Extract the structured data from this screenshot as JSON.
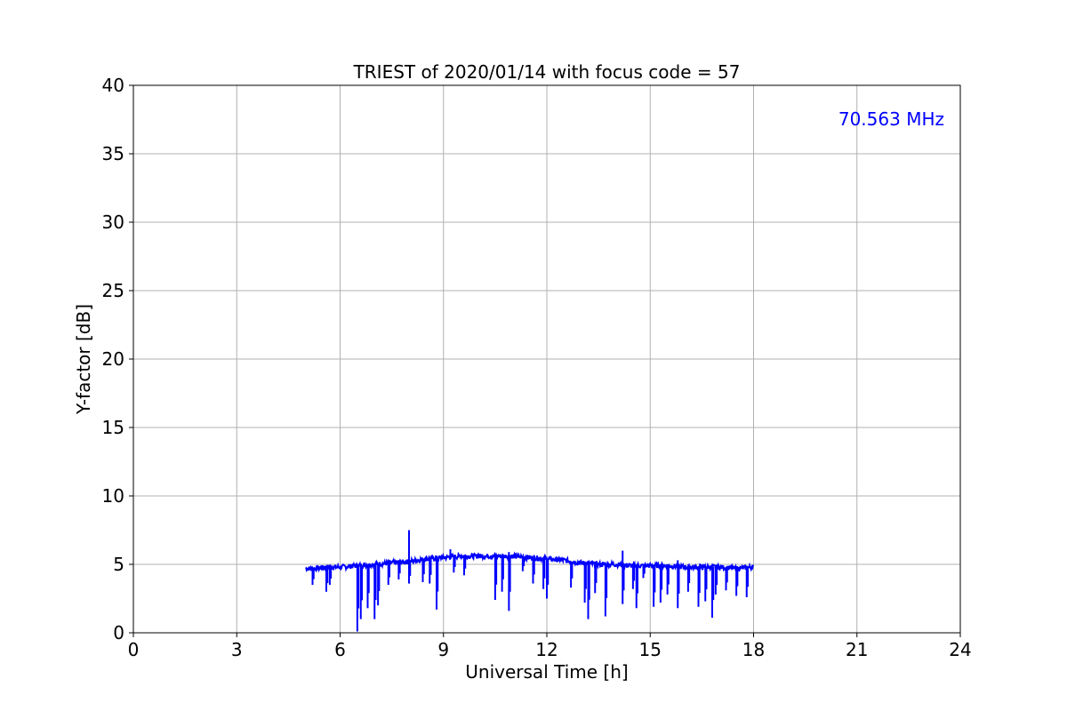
{
  "chart_data": {
    "type": "line",
    "title": "TRIEST of 2020/01/14 with focus code = 57",
    "xlabel": "Universal Time [h]",
    "ylabel": "Y-factor [dB]",
    "xlim": [
      0,
      24
    ],
    "ylim": [
      0,
      40
    ],
    "xticks": [
      "0",
      "3",
      "6",
      "9",
      "12",
      "15",
      "18",
      "21",
      "24"
    ],
    "yticks": [
      "0",
      "5",
      "10",
      "15",
      "20",
      "25",
      "30",
      "35",
      "40"
    ],
    "grid": true,
    "annotation": "70.563 MHz",
    "annotation_color": "#0000ff",
    "series": [
      {
        "color": "#0000ff",
        "x": [
          5.0,
          5.3,
          5.6,
          6.0,
          6.5,
          7.0,
          7.5,
          8.0,
          8.5,
          9.0,
          9.5,
          10.0,
          10.5,
          11.0,
          11.5,
          12.0,
          12.5,
          13.0,
          13.5,
          14.0,
          14.5,
          15.0,
          15.5,
          16.0,
          16.5,
          17.0,
          17.5,
          18.0
        ],
        "y": [
          4.7,
          4.7,
          4.8,
          4.8,
          4.9,
          5.0,
          5.1,
          5.2,
          5.4,
          5.5,
          5.6,
          5.6,
          5.6,
          5.6,
          5.5,
          5.4,
          5.3,
          5.1,
          5.0,
          5.0,
          4.9,
          4.9,
          4.9,
          4.8,
          4.8,
          4.8,
          4.7,
          4.8
        ],
        "spikes_down": [
          [
            5.2,
            3.5
          ],
          [
            5.6,
            3.0
          ],
          [
            5.7,
            3.5
          ],
          [
            6.5,
            0.1
          ],
          [
            6.6,
            1.0
          ],
          [
            6.8,
            1.8
          ],
          [
            7.0,
            1.0
          ],
          [
            7.1,
            2.0
          ],
          [
            7.4,
            3.5
          ],
          [
            7.7,
            3.9
          ],
          [
            8.0,
            3.6
          ],
          [
            8.4,
            3.7
          ],
          [
            8.6,
            3.6
          ],
          [
            8.8,
            1.7
          ],
          [
            9.3,
            4.4
          ],
          [
            9.6,
            4.2
          ],
          [
            10.5,
            2.4
          ],
          [
            10.7,
            3.0
          ],
          [
            10.9,
            1.6
          ],
          [
            11.3,
            4.5
          ],
          [
            11.6,
            3.6
          ],
          [
            11.9,
            3.2
          ],
          [
            12.0,
            2.5
          ],
          [
            12.7,
            3.3
          ],
          [
            13.1,
            2.2
          ],
          [
            13.2,
            1.0
          ],
          [
            13.4,
            2.9
          ],
          [
            13.7,
            1.2
          ],
          [
            14.2,
            2.1
          ],
          [
            14.5,
            3.2
          ],
          [
            14.6,
            1.8
          ],
          [
            14.8,
            4.0
          ],
          [
            15.1,
            1.9
          ],
          [
            15.3,
            2.2
          ],
          [
            15.5,
            2.8
          ],
          [
            15.8,
            1.8
          ],
          [
            16.1,
            3.0
          ],
          [
            16.4,
            1.9
          ],
          [
            16.6,
            2.3
          ],
          [
            16.8,
            1.1
          ],
          [
            16.9,
            2.8
          ],
          [
            17.2,
            3.1
          ],
          [
            17.5,
            2.7
          ],
          [
            17.8,
            2.6
          ]
        ],
        "spikes_up": [
          [
            8.0,
            7.5
          ],
          [
            9.2,
            6.1
          ],
          [
            10.9,
            5.9
          ],
          [
            14.2,
            6.0
          ],
          [
            15.8,
            5.3
          ]
        ]
      }
    ]
  }
}
